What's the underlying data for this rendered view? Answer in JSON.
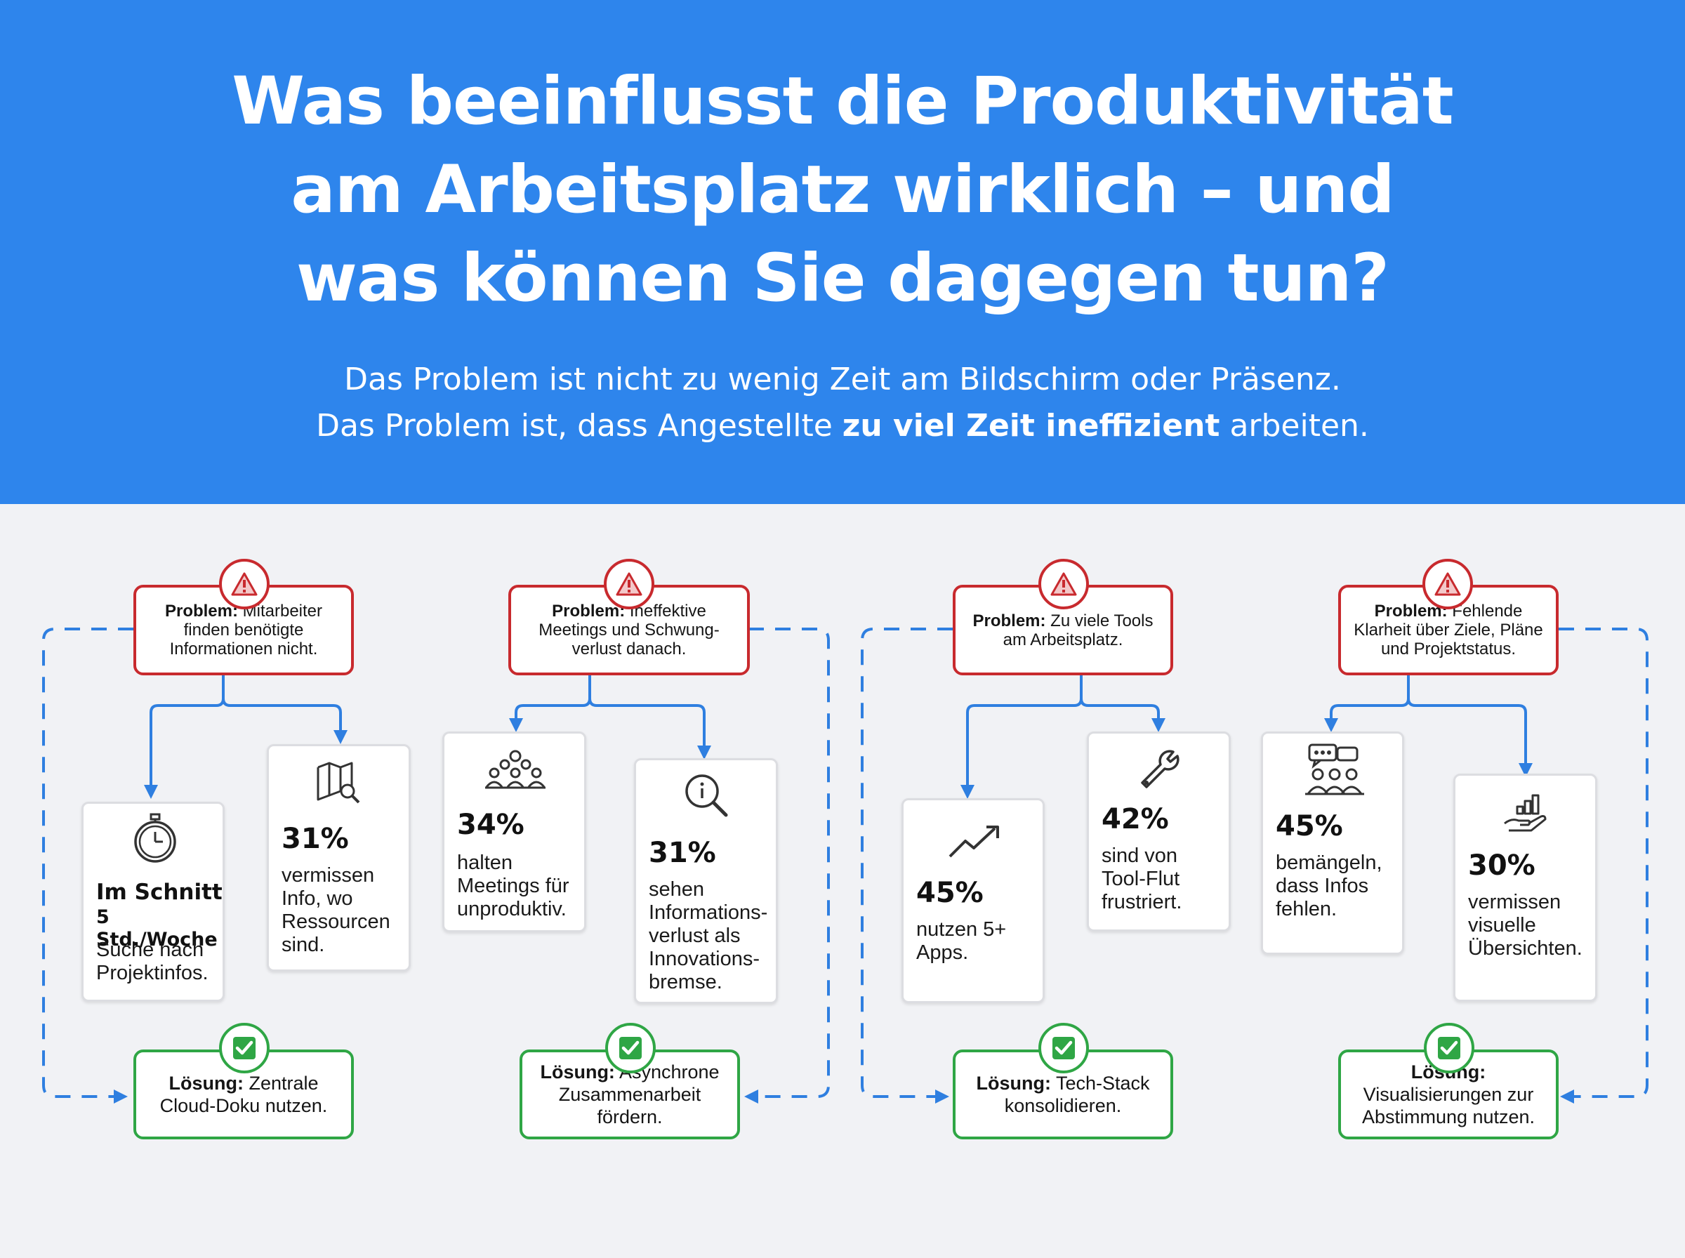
{
  "header": {
    "title_lines": [
      "Was beeinflusst die Produktivität",
      "am Arbeitsplatz wirklich – und",
      "was können Sie dagegen tun?"
    ],
    "subtitle_line1": "Das Problem ist nicht zu wenig Zeit am Bildschirm oder Präsenz.",
    "subtitle_line2_before": "Das Problem ist, dass Angestellte ",
    "subtitle_line2_bold": "zu viel Zeit ineffizient",
    "subtitle_line2_after": " arbeiten."
  },
  "colors": {
    "header_bg": "#2e85ec",
    "problem": "#c82a2e",
    "solution": "#2fa645",
    "arrow": "#2f7fe0"
  },
  "flows": [
    {
      "problem_label": "Problem:",
      "problem_text": " Mitarbeiter finden benötigte Informationen nicht.",
      "cards": [
        {
          "icon": "stopwatch-icon",
          "headline": "Im Schnitt",
          "subline": "5 Std./Woche",
          "text": "Suche nach\nProjektinfos."
        },
        {
          "icon": "map-search-icon",
          "percent": "31%",
          "text": "vermissen\nInfo, wo\nRessourcen\nsind."
        }
      ],
      "solution_label": "Lösung:",
      "solution_text": " Zentrale Cloud-Doku nutzen."
    },
    {
      "problem_label": "Problem:",
      "problem_text": " Ineffektive Meetings und Schwung-verlust danach.",
      "cards": [
        {
          "icon": "audience-icon",
          "percent": "34%",
          "text": "halten\nMeetings für\nunproduktiv."
        },
        {
          "icon": "info-search-icon",
          "percent": "31%",
          "text": "sehen\nInformations-\nverlust als\nInnovations-\nbremse."
        }
      ],
      "solution_label": "Lösung:",
      "solution_text": " Asynchrone Zusammenarbeit fördern."
    },
    {
      "problem_label": "Problem:",
      "problem_text": " Zu viele Tools am Arbeitsplatz.",
      "cards": [
        {
          "icon": "trend-up-icon",
          "percent": "45%",
          "text": "nutzen 5+\nApps."
        },
        {
          "icon": "wrench-icon",
          "percent": "42%",
          "text": "sind von\nTool-Flut\nfrustriert."
        }
      ],
      "solution_label": "Lösung:",
      "solution_text": " Tech-Stack konsolidieren."
    },
    {
      "problem_label": "Problem:",
      "problem_text": " Fehlende Klarheit über Ziele, Pläne und Projektstatus.",
      "cards": [
        {
          "icon": "team-chat-icon",
          "percent": "45%",
          "text": "bemängeln,\ndass Infos\nfehlen."
        },
        {
          "icon": "chart-hand-icon",
          "percent": "30%",
          "text": "vermissen\nvisuelle\nÜbersichten."
        }
      ],
      "solution_label": "Lösung:",
      "solution_text": " Visualisierungen zur Abstimmung nutzen."
    }
  ]
}
